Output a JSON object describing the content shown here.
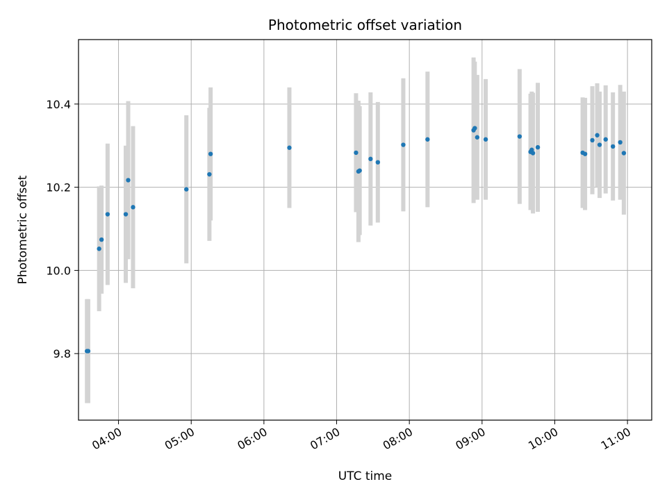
{
  "chart_data": {
    "type": "scatter",
    "title": "Photometric offset variation",
    "xlabel": "UTC time",
    "ylabel": "Photometric offset",
    "x_ticks": [
      "04:00",
      "05:00",
      "06:00",
      "07:00",
      "08:00",
      "09:00",
      "10:00",
      "11:00"
    ],
    "y_ticks": [
      "9.8",
      "10.0",
      "10.2",
      "10.4"
    ],
    "xlim": [
      "03:27",
      "11:20"
    ],
    "ylim": [
      9.64,
      10.555
    ],
    "grid": true,
    "errorbar_color": "#d3d3d3",
    "marker_color": "#1f77b4",
    "points": [
      {
        "x": "03:34",
        "y": 9.806,
        "err": 0.125
      },
      {
        "x": "03:35",
        "y": 9.806,
        "err": 0.125
      },
      {
        "x": "03:44",
        "y": 10.052,
        "err": 0.15
      },
      {
        "x": "03:46",
        "y": 10.074,
        "err": 0.13
      },
      {
        "x": "03:51",
        "y": 10.135,
        "err": 0.17
      },
      {
        "x": "04:06",
        "y": 10.135,
        "err": 0.165
      },
      {
        "x": "04:08",
        "y": 10.217,
        "err": 0.19
      },
      {
        "x": "04:12",
        "y": 10.152,
        "err": 0.195
      },
      {
        "x": "04:56",
        "y": 10.195,
        "err": 0.178
      },
      {
        "x": "05:15",
        "y": 10.231,
        "err": 0.16
      },
      {
        "x": "05:16",
        "y": 10.28,
        "err": 0.16
      },
      {
        "x": "06:21",
        "y": 10.295,
        "err": 0.145
      },
      {
        "x": "07:16",
        "y": 10.283,
        "err": 0.143
      },
      {
        "x": "07:18",
        "y": 10.238,
        "err": 0.17
      },
      {
        "x": "07:19",
        "y": 10.24,
        "err": 0.155
      },
      {
        "x": "07:28",
        "y": 10.268,
        "err": 0.16
      },
      {
        "x": "07:34",
        "y": 10.26,
        "err": 0.145
      },
      {
        "x": "07:55",
        "y": 10.302,
        "err": 0.16
      },
      {
        "x": "08:15",
        "y": 10.315,
        "err": 0.163
      },
      {
        "x": "08:53",
        "y": 10.337,
        "err": 0.175
      },
      {
        "x": "08:54",
        "y": 10.342,
        "err": 0.16
      },
      {
        "x": "08:56",
        "y": 10.32,
        "err": 0.15
      },
      {
        "x": "09:03",
        "y": 10.315,
        "err": 0.145
      },
      {
        "x": "09:31",
        "y": 10.322,
        "err": 0.162
      },
      {
        "x": "09:40",
        "y": 10.285,
        "err": 0.14
      },
      {
        "x": "09:41",
        "y": 10.29,
        "err": 0.14
      },
      {
        "x": "09:42",
        "y": 10.282,
        "err": 0.145
      },
      {
        "x": "09:46",
        "y": 10.296,
        "err": 0.155
      },
      {
        "x": "10:23",
        "y": 10.283,
        "err": 0.133
      },
      {
        "x": "10:25",
        "y": 10.28,
        "err": 0.135
      },
      {
        "x": "10:31",
        "y": 10.313,
        "err": 0.13
      },
      {
        "x": "10:35",
        "y": 10.325,
        "err": 0.125
      },
      {
        "x": "10:37",
        "y": 10.302,
        "err": 0.128
      },
      {
        "x": "10:42",
        "y": 10.315,
        "err": 0.13
      },
      {
        "x": "10:48",
        "y": 10.298,
        "err": 0.13
      },
      {
        "x": "10:54",
        "y": 10.308,
        "err": 0.138
      },
      {
        "x": "10:57",
        "y": 10.282,
        "err": 0.148
      }
    ]
  }
}
